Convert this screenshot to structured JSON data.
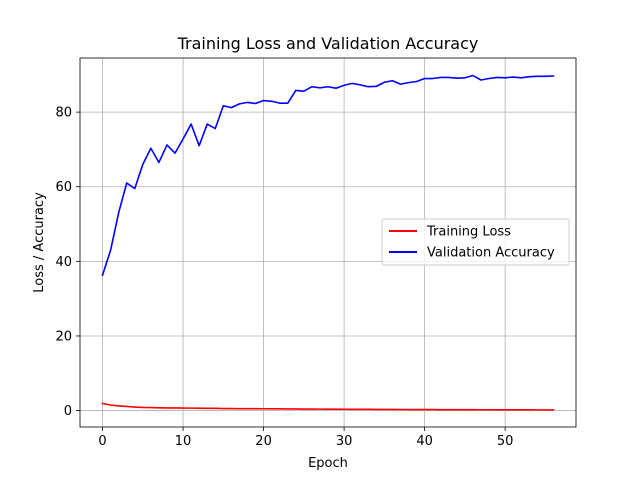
{
  "chart_data": {
    "type": "line",
    "title": "Training Loss and Validation Accuracy",
    "xlabel": "Epoch",
    "ylabel": "Loss / Accuracy",
    "xlim": [
      -2.8,
      58.8
    ],
    "ylim": [
      -4.4,
      94.5
    ],
    "xticks": [
      0,
      10,
      20,
      30,
      40,
      50
    ],
    "yticks": [
      0,
      20,
      40,
      60,
      80
    ],
    "grid": true,
    "legend_position": "center-right",
    "series": [
      {
        "name": "Training Loss",
        "color": "#ff0000",
        "x": [
          0,
          1,
          2,
          3,
          4,
          5,
          6,
          7,
          8,
          9,
          10,
          11,
          12,
          13,
          14,
          15,
          16,
          17,
          18,
          19,
          20,
          21,
          22,
          23,
          24,
          25,
          26,
          27,
          28,
          29,
          30,
          31,
          32,
          33,
          34,
          35,
          36,
          37,
          38,
          39,
          40,
          41,
          42,
          43,
          44,
          45,
          46,
          47,
          48,
          49,
          50,
          51,
          52,
          53,
          54,
          55,
          56
        ],
        "values": [
          1.9,
          1.5,
          1.25,
          1.1,
          0.95,
          0.85,
          0.8,
          0.75,
          0.72,
          0.7,
          0.68,
          0.66,
          0.64,
          0.62,
          0.6,
          0.55,
          0.53,
          0.52,
          0.51,
          0.5,
          0.49,
          0.48,
          0.47,
          0.45,
          0.43,
          0.41,
          0.4,
          0.39,
          0.38,
          0.37,
          0.36,
          0.35,
          0.34,
          0.33,
          0.32,
          0.31,
          0.3,
          0.29,
          0.28,
          0.27,
          0.27,
          0.26,
          0.25,
          0.24,
          0.24,
          0.23,
          0.23,
          0.22,
          0.22,
          0.21,
          0.21,
          0.2,
          0.2,
          0.2,
          0.19,
          0.19,
          0.18
        ]
      },
      {
        "name": "Validation Accuracy",
        "color": "#0000ff",
        "x": [
          0,
          1,
          2,
          3,
          4,
          5,
          6,
          7,
          8,
          9,
          10,
          11,
          12,
          13,
          14,
          15,
          16,
          17,
          18,
          19,
          20,
          21,
          22,
          23,
          24,
          25,
          26,
          27,
          28,
          29,
          30,
          31,
          32,
          33,
          34,
          35,
          36,
          37,
          38,
          39,
          40,
          41,
          42,
          43,
          44,
          45,
          46,
          47,
          48,
          49,
          50,
          51,
          52,
          53,
          54,
          55,
          56
        ],
        "values": [
          36.3,
          43.0,
          53.0,
          61.0,
          59.5,
          66.0,
          70.3,
          66.5,
          71.2,
          69.0,
          72.8,
          76.8,
          71.0,
          76.8,
          75.6,
          81.7,
          81.2,
          82.2,
          82.6,
          82.3,
          83.1,
          82.9,
          82.4,
          82.4,
          85.8,
          85.6,
          86.8,
          86.5,
          86.8,
          86.4,
          87.2,
          87.7,
          87.3,
          86.8,
          86.9,
          88.0,
          88.4,
          87.5,
          87.9,
          88.2,
          89.0,
          89.0,
          89.3,
          89.3,
          89.1,
          89.2,
          89.8,
          88.6,
          89.0,
          89.3,
          89.2,
          89.4,
          89.2,
          89.5,
          89.6,
          89.6,
          89.7
        ]
      }
    ]
  }
}
